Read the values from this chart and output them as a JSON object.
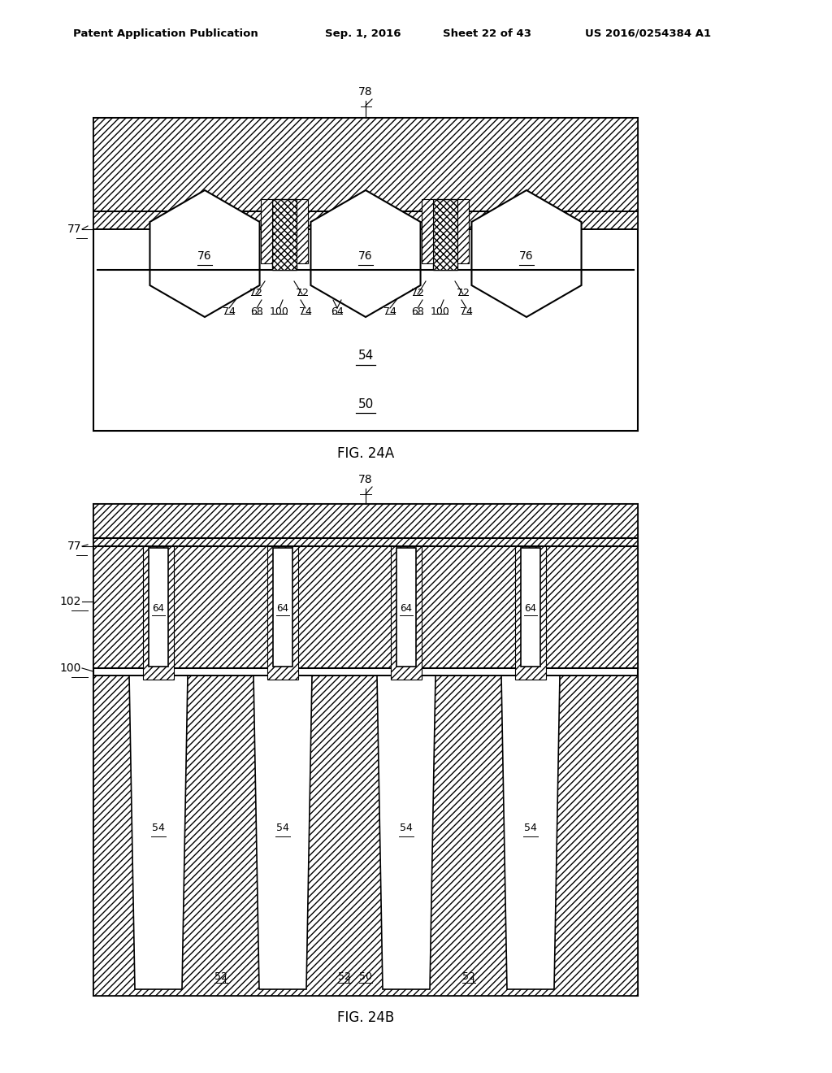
{
  "bg_color": "#ffffff",
  "line_color": "#000000",
  "fig_width": 10.24,
  "fig_height": 13.2,
  "header_text": "Patent Application Publication",
  "header_date": "Sep. 1, 2016",
  "header_sheet": "Sheet 22 of 43",
  "header_patent": "US 2016/0254384 A1",
  "fig24a_label": "FIG. 24A",
  "fig24b_label": "FIG. 24B"
}
